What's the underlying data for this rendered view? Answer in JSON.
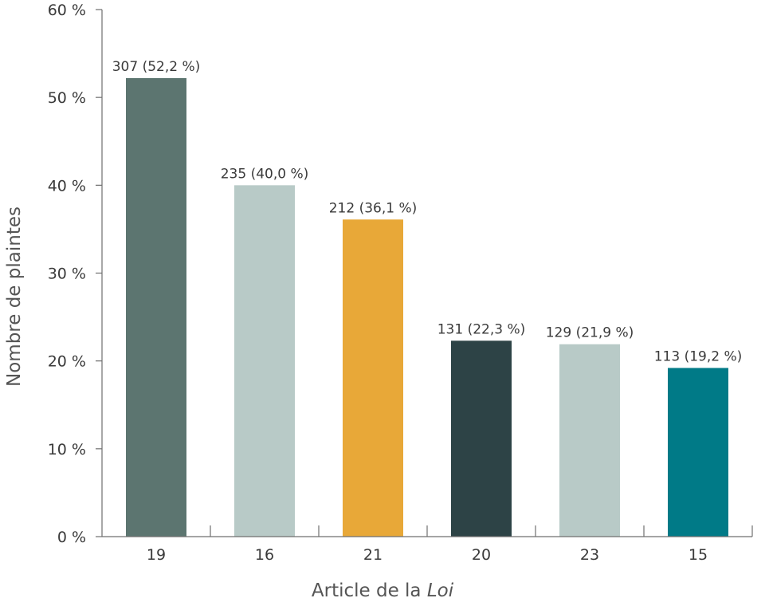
{
  "chart_data": {
    "type": "bar",
    "categories": [
      "19",
      "16",
      "21",
      "20",
      "23",
      "15"
    ],
    "values": [
      52.2,
      40.0,
      36.1,
      22.3,
      21.9,
      19.2
    ],
    "counts": [
      307,
      235,
      212,
      131,
      129,
      113
    ],
    "data_labels": [
      "307 (52,2 %)",
      "235 (40,0 %)",
      "212 (36,1 %)",
      "131 (22,3 %)",
      "129 (21,9 %)",
      "113 (19,2 %)"
    ],
    "colors": [
      "#5c7570",
      "#b8cac7",
      "#e8a838",
      "#2d4346",
      "#b8cac7",
      "#007a87"
    ],
    "ylim": [
      0,
      60
    ],
    "yticks": [
      0,
      10,
      20,
      30,
      40,
      50,
      60
    ],
    "ytick_labels": [
      "0 %",
      "10 %",
      "20 %",
      "30 %",
      "40 %",
      "50 %",
      "60 %"
    ],
    "ylabel": "Nombre de plaintes",
    "xlabel_prefix": "Article de la ",
    "xlabel_emphasis": "Loi",
    "grid": false,
    "legend": "none"
  }
}
